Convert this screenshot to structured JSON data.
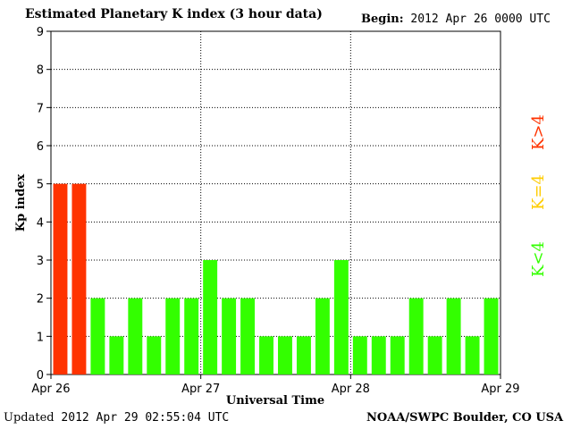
{
  "header": {
    "title": "Estimated Planetary K index (3 hour data)",
    "begin_label": "Begin:",
    "begin_value": "2012 Apr 26 0000 UTC"
  },
  "footer": {
    "updated_label": "Updated",
    "updated_value": "2012 Apr 29 02:55:04 UTC",
    "credit": "NOAA/SWPC Boulder, CO USA"
  },
  "legend": {
    "high": {
      "label": "K>4",
      "color": "#ff3300"
    },
    "mid": {
      "label": "K=4",
      "color": "#ffcc00"
    },
    "low": {
      "label": "K<4",
      "color": "#33ff00"
    }
  },
  "chart_data": {
    "type": "bar",
    "title": "Estimated Planetary K index (3 hour data)",
    "xlabel": "Universal Time",
    "ylabel": "Kp index",
    "ylim": [
      0,
      9
    ],
    "yticks": [
      "0",
      "1",
      "2",
      "3",
      "4",
      "5",
      "6",
      "7",
      "8",
      "9"
    ],
    "xticks": [
      "Apr 26",
      "Apr 27",
      "Apr 28",
      "Apr 29"
    ],
    "grid": true,
    "legend_position": "right",
    "values": [
      5,
      5,
      2,
      1,
      2,
      1,
      2,
      2,
      3,
      2,
      2,
      1,
      1,
      1,
      2,
      3,
      1,
      1,
      1,
      2,
      1,
      2,
      1,
      2
    ]
  }
}
